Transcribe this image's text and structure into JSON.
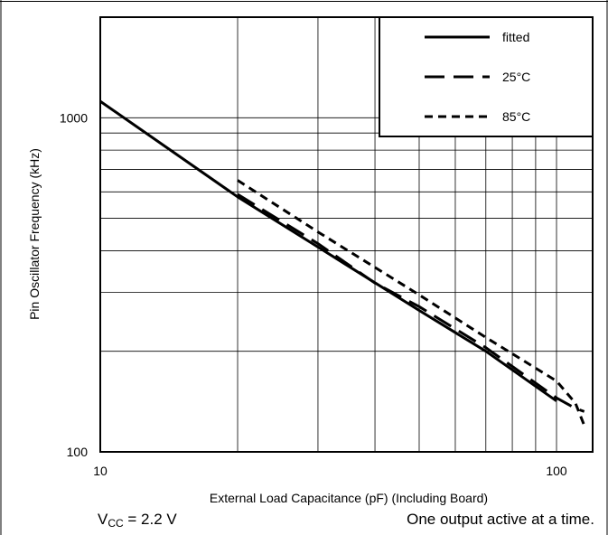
{
  "chart_data": {
    "type": "line",
    "xlabel": "External Load Capacitance (pF) (Including Board)",
    "ylabel": "Pin Oscillator Frequency (kHz)",
    "x_scale": "log",
    "y_scale": "log",
    "xlim": [
      10,
      120
    ],
    "ylim": [
      100,
      2000
    ],
    "x_tick_labels": [
      {
        "value": 10,
        "label": "10"
      },
      {
        "value": 100,
        "label": "100"
      }
    ],
    "y_tick_labels": [
      {
        "value": 100,
        "label": "100"
      },
      {
        "value": 1000,
        "label": "1000"
      }
    ],
    "grid": true,
    "legend_position": "top-right",
    "series": [
      {
        "name": "fitted",
        "style": "solid",
        "x": [
          10,
          20,
          30,
          50,
          70,
          100
        ],
        "y": [
          1120,
          580,
          410,
          265,
          200,
          142
        ]
      },
      {
        "name": "25°C",
        "style": "long-dash",
        "x": [
          20,
          30,
          40,
          50,
          70,
          100,
          110,
          115
        ],
        "y": [
          590,
          420,
          320,
          272,
          205,
          145,
          135,
          132
        ]
      },
      {
        "name": "85°C",
        "style": "short-dash",
        "x": [
          20,
          30,
          50,
          70,
          100,
          110,
          115
        ],
        "y": [
          650,
          455,
          295,
          220,
          163,
          140,
          120
        ]
      }
    ]
  },
  "notes": {
    "vcc_prefix": "V",
    "vcc_sub": "CC",
    "vcc_value": " = 2.2 V",
    "right": "One output active at a time."
  }
}
